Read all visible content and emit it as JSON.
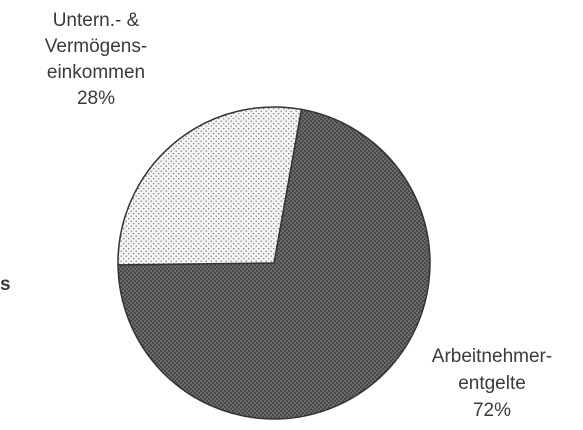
{
  "chart_data": {
    "type": "pie",
    "title": "",
    "slices": [
      {
        "name": "Arbeitnehmer-entgelte",
        "value": 72,
        "label_lines": [
          "Arbeitnehmer-",
          "entgelte",
          "72%"
        ]
      },
      {
        "name": "Untern.- & Vermögens-einkommen",
        "value": 28,
        "label_lines": [
          "Untern.- &",
          "Vermögens-",
          "einkommen",
          "28%"
        ]
      }
    ],
    "edge_text": "s",
    "colors": {
      "dark_fill": "#4a4a4a",
      "light_fill": "#f4f4f4",
      "stroke": "#333333"
    }
  }
}
